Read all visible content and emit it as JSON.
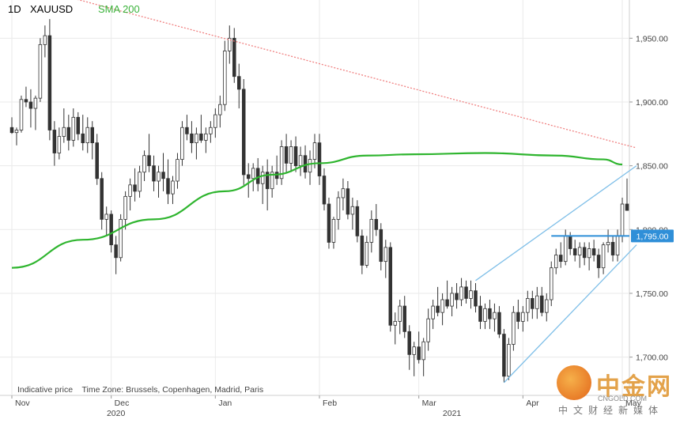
{
  "header": {
    "timeframe": "1D",
    "symbol": "XAUUSD",
    "indicator": "SMA 200",
    "indicator_color": "#3bb33b"
  },
  "footer_note": "Indicative price    Time Zone: Brussels, Copenhagen, Madrid, Paris",
  "price_tag": "1,795.00",
  "watermark": {
    "brand": "中金网",
    "url": "CNGOLD.COM",
    "subtitle": "中文财经新媒体"
  },
  "colors": {
    "candle": "#333333",
    "sma": "#2fb52f",
    "resistance": "#f08080",
    "channel": "#7fbfe8",
    "level": "#2f8fd8",
    "grid": "#eaeaea"
  },
  "chart_data": {
    "type": "candlestick",
    "title": "",
    "symbol": "XAUUSD",
    "timeframe": "1D",
    "ylim": [
      1670,
      1975
    ],
    "y_ticks": [
      "1,700.00",
      "1,750.00",
      "1,800.00",
      "1,850.00",
      "1,900.00",
      "1,950.00"
    ],
    "y_tick_values": [
      1700,
      1750,
      1800,
      1850,
      1900,
      1950
    ],
    "x_month_labels": [
      "Nov",
      "Dec",
      "Jan",
      "Feb",
      "Mar",
      "Apr",
      "May"
    ],
    "x_month_index": [
      0,
      21,
      43,
      65,
      86,
      108,
      129
    ],
    "x_year_labels": [
      "2020",
      "2021"
    ],
    "x_year_index": [
      22,
      93
    ],
    "candles": [
      [
        1880,
        1888,
        1875,
        1876
      ],
      [
        1876,
        1880,
        1866,
        1878
      ],
      [
        1878,
        1905,
        1876,
        1902
      ],
      [
        1902,
        1912,
        1896,
        1900
      ],
      [
        1900,
        1910,
        1880,
        1895
      ],
      [
        1895,
        1905,
        1878,
        1903
      ],
      [
        1903,
        1950,
        1900,
        1945
      ],
      [
        1945,
        1960,
        1935,
        1952
      ],
      [
        1952,
        1965,
        1870,
        1878
      ],
      [
        1878,
        1885,
        1850,
        1860
      ],
      [
        1860,
        1880,
        1855,
        1873
      ],
      [
        1873,
        1895,
        1868,
        1880
      ],
      [
        1880,
        1890,
        1862,
        1870
      ],
      [
        1870,
        1895,
        1865,
        1888
      ],
      [
        1888,
        1892,
        1870,
        1875
      ],
      [
        1875,
        1890,
        1862,
        1868
      ],
      [
        1868,
        1888,
        1860,
        1880
      ],
      [
        1880,
        1885,
        1855,
        1868
      ],
      [
        1868,
        1875,
        1835,
        1840
      ],
      [
        1840,
        1845,
        1800,
        1808
      ],
      [
        1808,
        1818,
        1795,
        1812
      ],
      [
        1812,
        1815,
        1782,
        1788
      ],
      [
        1788,
        1795,
        1765,
        1778
      ],
      [
        1778,
        1812,
        1775,
        1808
      ],
      [
        1808,
        1830,
        1800,
        1826
      ],
      [
        1826,
        1840,
        1815,
        1835
      ],
      [
        1835,
        1848,
        1822,
        1830
      ],
      [
        1830,
        1850,
        1825,
        1845
      ],
      [
        1845,
        1862,
        1838,
        1858
      ],
      [
        1858,
        1875,
        1845,
        1850
      ],
      [
        1850,
        1858,
        1830,
        1838
      ],
      [
        1838,
        1850,
        1825,
        1845
      ],
      [
        1845,
        1860,
        1830,
        1840
      ],
      [
        1840,
        1855,
        1820,
        1828
      ],
      [
        1828,
        1842,
        1820,
        1838
      ],
      [
        1838,
        1860,
        1832,
        1855
      ],
      [
        1855,
        1885,
        1850,
        1880
      ],
      [
        1880,
        1890,
        1870,
        1875
      ],
      [
        1875,
        1885,
        1860,
        1868
      ],
      [
        1868,
        1880,
        1855,
        1875
      ],
      [
        1875,
        1890,
        1868,
        1870
      ],
      [
        1870,
        1880,
        1860,
        1875
      ],
      [
        1875,
        1885,
        1868,
        1880
      ],
      [
        1880,
        1895,
        1872,
        1890
      ],
      [
        1890,
        1905,
        1880,
        1898
      ],
      [
        1898,
        1948,
        1893,
        1940
      ],
      [
        1940,
        1960,
        1930,
        1950
      ],
      [
        1950,
        1958,
        1915,
        1920
      ],
      [
        1920,
        1930,
        1895,
        1910
      ],
      [
        1910,
        1918,
        1835,
        1843
      ],
      [
        1843,
        1852,
        1825,
        1840
      ],
      [
        1840,
        1852,
        1830,
        1848
      ],
      [
        1848,
        1856,
        1830,
        1836
      ],
      [
        1836,
        1850,
        1820,
        1845
      ],
      [
        1845,
        1855,
        1815,
        1832
      ],
      [
        1832,
        1850,
        1825,
        1845
      ],
      [
        1845,
        1858,
        1835,
        1840
      ],
      [
        1840,
        1870,
        1835,
        1865
      ],
      [
        1865,
        1875,
        1845,
        1852
      ],
      [
        1852,
        1870,
        1845,
        1865
      ],
      [
        1865,
        1873,
        1845,
        1850
      ],
      [
        1850,
        1865,
        1842,
        1858
      ],
      [
        1858,
        1866,
        1840,
        1845
      ],
      [
        1845,
        1862,
        1835,
        1855
      ],
      [
        1855,
        1875,
        1848,
        1868
      ],
      [
        1868,
        1875,
        1835,
        1842
      ],
      [
        1842,
        1848,
        1815,
        1820
      ],
      [
        1820,
        1825,
        1785,
        1790
      ],
      [
        1790,
        1810,
        1785,
        1808
      ],
      [
        1808,
        1830,
        1800,
        1825
      ],
      [
        1825,
        1840,
        1815,
        1832
      ],
      [
        1832,
        1838,
        1808,
        1812
      ],
      [
        1812,
        1825,
        1800,
        1818
      ],
      [
        1818,
        1823,
        1790,
        1795
      ],
      [
        1795,
        1800,
        1765,
        1772
      ],
      [
        1772,
        1795,
        1770,
        1790
      ],
      [
        1790,
        1815,
        1782,
        1808
      ],
      [
        1808,
        1820,
        1795,
        1800
      ],
      [
        1800,
        1805,
        1768,
        1775
      ],
      [
        1775,
        1792,
        1762,
        1786
      ],
      [
        1786,
        1790,
        1720,
        1725
      ],
      [
        1725,
        1735,
        1710,
        1728
      ],
      [
        1728,
        1745,
        1718,
        1740
      ],
      [
        1740,
        1748,
        1715,
        1720
      ],
      [
        1720,
        1725,
        1690,
        1702
      ],
      [
        1702,
        1712,
        1685,
        1708
      ],
      [
        1708,
        1720,
        1695,
        1698
      ],
      [
        1698,
        1715,
        1685,
        1712
      ],
      [
        1712,
        1738,
        1705,
        1730
      ],
      [
        1730,
        1745,
        1722,
        1740
      ],
      [
        1740,
        1755,
        1732,
        1735
      ],
      [
        1735,
        1750,
        1725,
        1745
      ],
      [
        1745,
        1760,
        1738,
        1740
      ],
      [
        1740,
        1755,
        1732,
        1750
      ],
      [
        1750,
        1758,
        1738,
        1745
      ],
      [
        1745,
        1762,
        1740,
        1755
      ],
      [
        1755,
        1760,
        1742,
        1746
      ],
      [
        1746,
        1760,
        1738,
        1752
      ],
      [
        1752,
        1758,
        1735,
        1740
      ],
      [
        1740,
        1748,
        1722,
        1728
      ],
      [
        1728,
        1742,
        1722,
        1738
      ],
      [
        1738,
        1745,
        1722,
        1730
      ],
      [
        1730,
        1742,
        1720,
        1735
      ],
      [
        1735,
        1740,
        1715,
        1718
      ],
      [
        1718,
        1722,
        1680,
        1685
      ],
      [
        1685,
        1715,
        1682,
        1710
      ],
      [
        1710,
        1740,
        1705,
        1735
      ],
      [
        1735,
        1745,
        1722,
        1728
      ],
      [
        1728,
        1740,
        1720,
        1735
      ],
      [
        1735,
        1752,
        1728,
        1746
      ],
      [
        1746,
        1752,
        1730,
        1738
      ],
      [
        1738,
        1755,
        1730,
        1748
      ],
      [
        1748,
        1755,
        1732,
        1735
      ],
      [
        1735,
        1750,
        1728,
        1745
      ],
      [
        1745,
        1775,
        1740,
        1770
      ],
      [
        1770,
        1785,
        1765,
        1780
      ],
      [
        1780,
        1790,
        1770,
        1775
      ],
      [
        1775,
        1800,
        1772,
        1795
      ],
      [
        1795,
        1798,
        1780,
        1785
      ],
      [
        1785,
        1792,
        1775,
        1780
      ],
      [
        1780,
        1790,
        1770,
        1786
      ],
      [
        1786,
        1790,
        1772,
        1778
      ],
      [
        1778,
        1790,
        1768,
        1785
      ],
      [
        1785,
        1792,
        1775,
        1780
      ],
      [
        1780,
        1785,
        1762,
        1770
      ],
      [
        1770,
        1790,
        1765,
        1788
      ],
      [
        1788,
        1800,
        1782,
        1790
      ],
      [
        1790,
        1795,
        1775,
        1780
      ],
      [
        1780,
        1800,
        1775,
        1795
      ],
      [
        1795,
        1825,
        1790,
        1820
      ],
      [
        1820,
        1840,
        1815,
        1815
      ]
    ],
    "series": [
      {
        "name": "SMA 200",
        "points": [
          [
            0,
            1770
          ],
          [
            15,
            1792
          ],
          [
            30,
            1808
          ],
          [
            45,
            1830
          ],
          [
            55,
            1843
          ],
          [
            65,
            1852
          ],
          [
            75,
            1858
          ],
          [
            85,
            1859
          ],
          [
            100,
            1860
          ],
          [
            115,
            1858
          ],
          [
            125,
            1855
          ],
          [
            129,
            1851
          ]
        ]
      }
    ],
    "annotations": {
      "resistance_line": [
        [
          -3,
          1997
        ],
        [
          132,
          1864
        ]
      ],
      "channel_upper": [
        [
          98,
          1760
        ],
        [
          132,
          1850
        ]
      ],
      "channel_lower": [
        [
          104,
          1680
        ],
        [
          132,
          1788
        ]
      ],
      "horizontal_level": 1795.0
    }
  }
}
